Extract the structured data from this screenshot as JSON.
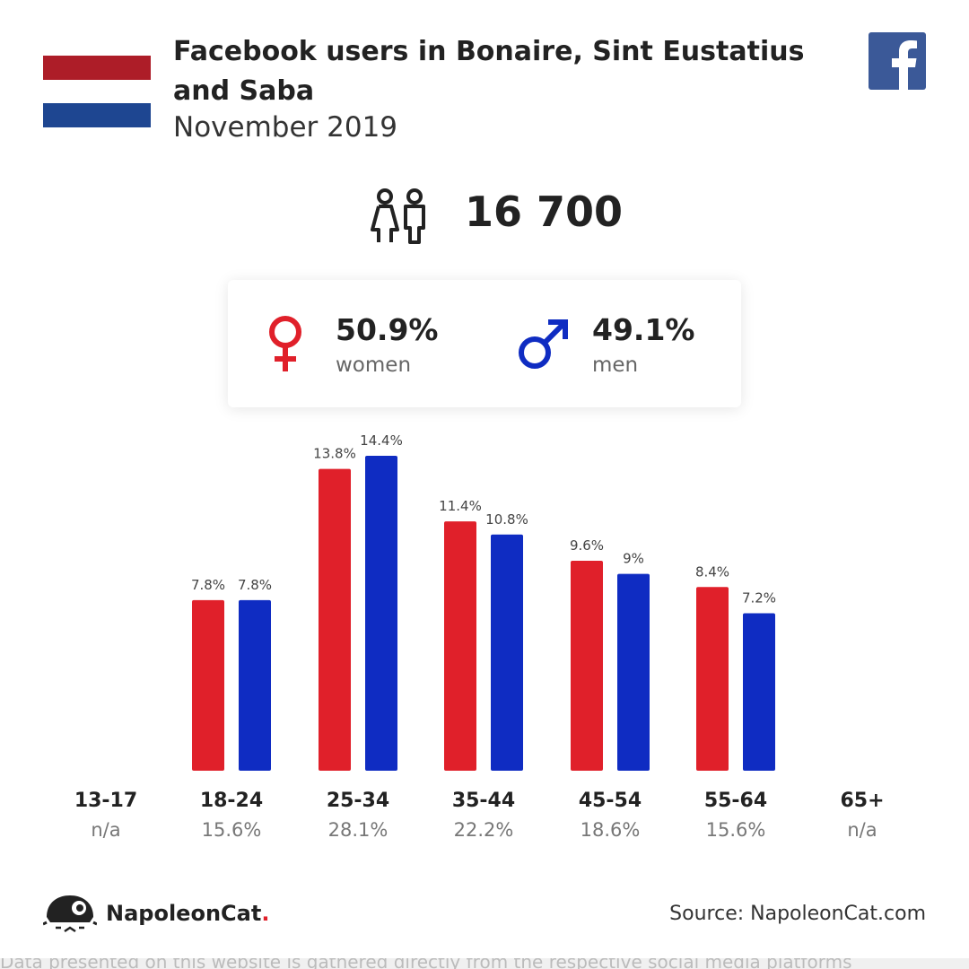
{
  "header": {
    "title": "Facebook users in Bonaire, Sint Eustatius and Saba",
    "date": "November 2019"
  },
  "icons": {
    "flag": "netherlands-flag-icon",
    "facebook": "facebook-logo-icon",
    "users": "users-couple-icon",
    "female": "female-symbol-icon",
    "male": "male-symbol-icon",
    "brand": "napoleoncat-logo-icon"
  },
  "colors": {
    "women": "#e0202a",
    "men": "#0f2cc2",
    "flag_red": "#ad1d28",
    "flag_blue": "#1e4691",
    "facebook": "#3b5998"
  },
  "total_users": "16 700",
  "gender": {
    "women": {
      "pct": "50.9%",
      "label": "women"
    },
    "men": {
      "pct": "49.1%",
      "label": "men"
    }
  },
  "chart_data": {
    "type": "bar",
    "categories": [
      "13-17",
      "18-24",
      "25-34",
      "35-44",
      "45-54",
      "55-64",
      "65+"
    ],
    "category_totals": [
      "n/a",
      "15.6%",
      "28.1%",
      "22.2%",
      "18.6%",
      "15.6%",
      "n/a"
    ],
    "series": [
      {
        "name": "women",
        "values": [
          null,
          7.8,
          13.8,
          11.4,
          9.6,
          8.4,
          null
        ],
        "labels": [
          "",
          "7.8%",
          "13.8%",
          "11.4%",
          "9.6%",
          "8.4%",
          ""
        ]
      },
      {
        "name": "men",
        "values": [
          null,
          7.8,
          14.4,
          10.8,
          9,
          7.2,
          null
        ],
        "labels": [
          "",
          "7.8%",
          "14.4%",
          "10.8%",
          "9%",
          "7.2%",
          ""
        ]
      }
    ],
    "ylim": [
      0,
      15
    ]
  },
  "footer": {
    "brand": "NapoleonCat",
    "brand_dot": ".",
    "source": "Source: NapoleonCat.com",
    "cut_text": "Data presented on this website is gathered directly from the respective social media platforms"
  }
}
